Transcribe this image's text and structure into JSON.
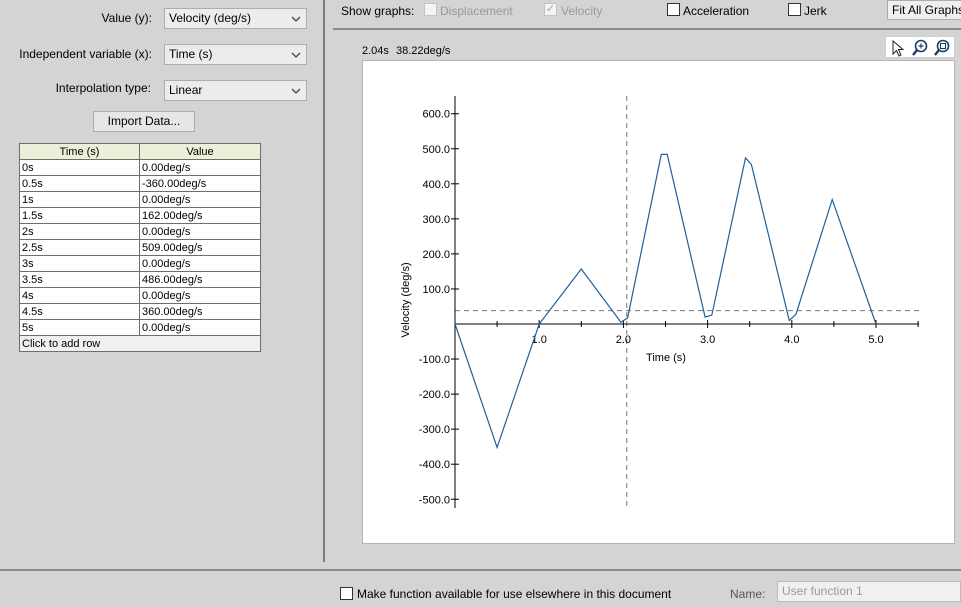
{
  "form": {
    "value_label": "Value (y):",
    "value_select": "Velocity (deg/s)",
    "indep_label": "Independent variable (x):",
    "indep_select": "Time (s)",
    "interp_label": "Interpolation type:",
    "interp_select": "Linear",
    "import_button": "Import Data..."
  },
  "table": {
    "headers": [
      "Time (s)",
      "Value"
    ],
    "rows": [
      [
        "0s",
        "0.00deg/s"
      ],
      [
        "0.5s",
        "-360.00deg/s"
      ],
      [
        "1s",
        "0.00deg/s"
      ],
      [
        "1.5s",
        "162.00deg/s"
      ],
      [
        "2s",
        "0.00deg/s"
      ],
      [
        "2.5s",
        "509.00deg/s"
      ],
      [
        "3s",
        "0.00deg/s"
      ],
      [
        "3.5s",
        "486.00deg/s"
      ],
      [
        "4s",
        "0.00deg/s"
      ],
      [
        "4.5s",
        "360.00deg/s"
      ],
      [
        "5s",
        "0.00deg/s"
      ]
    ],
    "add_row": "Click to add row"
  },
  "show_graphs": {
    "label": "Show graphs:",
    "displacement": "Displacement",
    "velocity": "Velocity",
    "acceleration": "Acceleration",
    "jerk": "Jerk",
    "displacement_checked": false,
    "velocity_checked": true,
    "acceleration_checked": false,
    "jerk_checked": false,
    "fit_all": "Fit All Graphs"
  },
  "readout": {
    "x": "2.04s",
    "y": "38.22deg/s"
  },
  "tools": {
    "select": "cursor-icon",
    "zoom": "zoom-icon",
    "zoom_fit": "zoom-fit-icon"
  },
  "chart_data": {
    "type": "line",
    "xlabel": "Time (s)",
    "ylabel": "Velocity (deg/s)",
    "xlim": [
      0,
      5.5
    ],
    "ylim": [
      -500,
      650
    ],
    "x_ticks": [
      "1.0",
      "2.0",
      "3.0",
      "4.0",
      "5.0"
    ],
    "y_ticks": [
      "600.0",
      "500.0",
      "400.0",
      "300.0",
      "200.0",
      "100.0",
      "-100.0",
      "-200.0",
      "-300.0",
      "-400.0",
      "-500.0"
    ],
    "series": [
      {
        "color": "#1f5f9a",
        "x": [
          0,
          0.5,
          1.0,
          1.5,
          1.97,
          2.05,
          2.45,
          2.52,
          2.97,
          3.05,
          3.45,
          3.52,
          3.97,
          4.05,
          4.48,
          5.0
        ],
        "y": [
          0,
          -352,
          0,
          157,
          5,
          17,
          484,
          484,
          20,
          25,
          474,
          455,
          10,
          28,
          355,
          0
        ]
      }
    ],
    "crosshair": {
      "x": 2.04,
      "y": 38.22
    },
    "grid": false
  },
  "footer": {
    "make_available": "Make function available for use elsewhere in this document",
    "name_label": "Name:",
    "name_placeholder": "User function 1"
  }
}
